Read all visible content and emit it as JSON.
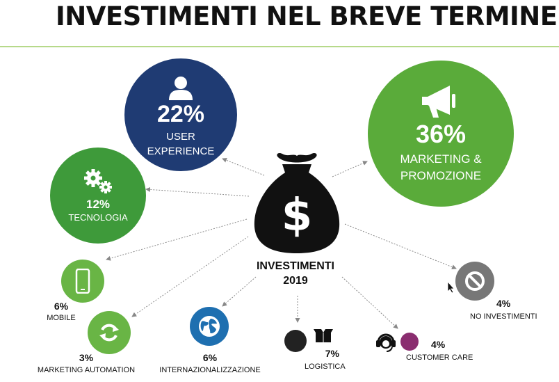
{
  "title": "INVESTIMENTI NEL BREVE TERMINE",
  "center": {
    "line1": "INVESTIMENTI",
    "line2": "2019",
    "icon": "money-bag-dollar-icon"
  },
  "segments": [
    {
      "id": "user-experience",
      "percent": "22%",
      "label_line1": "USER",
      "label_line2": "EXPERIENCE",
      "color": "#1f3b73",
      "icon": "user-icon"
    },
    {
      "id": "marketing",
      "percent": "36%",
      "label_line1": "MARKETING &",
      "label_line2": "PROMOZIONE",
      "color": "#5aab3a",
      "icon": "megaphone-icon"
    },
    {
      "id": "tecnologia",
      "percent": "12%",
      "label": "TECNOLOGIA",
      "color": "#3e9a3a",
      "icon": "gears-icon"
    },
    {
      "id": "mobile",
      "percent": "6%",
      "label": "MOBILE",
      "color": "#69b545",
      "icon": "smartphone-icon"
    },
    {
      "id": "marketing-automation",
      "percent": "3%",
      "label": "MARKETING AUTOMATION",
      "color": "#69b545",
      "icon": "refresh-icon"
    },
    {
      "id": "internazionalizzazione",
      "percent": "6%",
      "label": "INTERNAZIONALIZZAZIONE",
      "color": "#1e6fb0",
      "icon": "globe-icon"
    },
    {
      "id": "logistica",
      "percent": "7%",
      "label": "LOGISTICA",
      "color": "#222222",
      "icon": "box-icon"
    },
    {
      "id": "customer-care",
      "percent": "4%",
      "label": "CUSTOMER CARE",
      "color": "#8a2d6f",
      "icon": "headset-icon"
    },
    {
      "id": "no-investimenti",
      "percent": "4%",
      "label": "NO INVESTIMENTI",
      "color": "#777777",
      "icon": "prohibited-icon"
    }
  ]
}
